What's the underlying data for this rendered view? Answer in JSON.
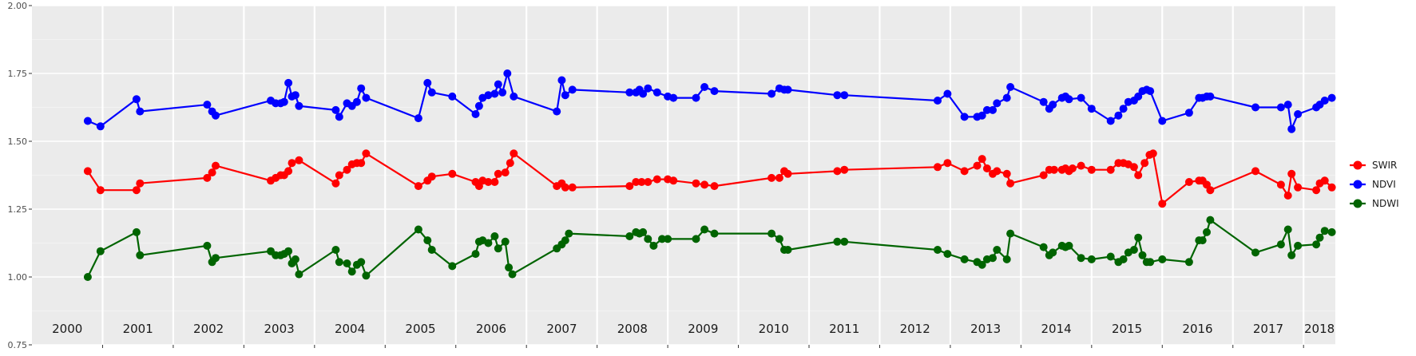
{
  "colors": {
    "panel_background": "#ebebeb",
    "grid_major": "#ffffff",
    "SWIR": "#ff0000",
    "NDVI": "#0000ff",
    "NDWI": "#006400"
  },
  "chart_data": {
    "type": "line",
    "title": "",
    "xlabel": "",
    "ylabel": "",
    "ylim": [
      0.75,
      2.0
    ],
    "xlim": [
      2000.0,
      2018.45
    ],
    "y_ticks": [
      "0.75",
      "1.00",
      "1.25",
      "1.50",
      "1.75",
      "2.00"
    ],
    "year_labels": [
      "2000",
      "2001",
      "2002",
      "2003",
      "2004",
      "2005",
      "2006",
      "2007",
      "2008",
      "2009",
      "2010",
      "2011",
      "2012",
      "2013",
      "2014",
      "2015",
      "2016",
      "2017",
      "2018"
    ],
    "grid": true,
    "legend_position": "right",
    "x_unit": "decimal year",
    "series": [
      {
        "name": "SWIR",
        "color": "#ff0000",
        "points": [
          [
            2000.79,
            1.39
          ],
          [
            2000.97,
            1.32
          ],
          [
            2001.48,
            1.32
          ],
          [
            2001.53,
            1.345
          ],
          [
            2002.48,
            1.365
          ],
          [
            2002.55,
            1.385
          ],
          [
            2002.6,
            1.41
          ],
          [
            2003.38,
            1.355
          ],
          [
            2003.45,
            1.365
          ],
          [
            2003.52,
            1.375
          ],
          [
            2003.57,
            1.375
          ],
          [
            2003.63,
            1.39
          ],
          [
            2003.68,
            1.42
          ],
          [
            2003.78,
            1.43
          ],
          [
            2004.3,
            1.345
          ],
          [
            2004.35,
            1.375
          ],
          [
            2004.46,
            1.395
          ],
          [
            2004.53,
            1.415
          ],
          [
            2004.6,
            1.42
          ],
          [
            2004.66,
            1.42
          ],
          [
            2004.73,
            1.455
          ],
          [
            2005.47,
            1.335
          ],
          [
            2005.6,
            1.355
          ],
          [
            2005.66,
            1.37
          ],
          [
            2005.95,
            1.38
          ],
          [
            2006.28,
            1.35
          ],
          [
            2006.33,
            1.335
          ],
          [
            2006.38,
            1.355
          ],
          [
            2006.46,
            1.35
          ],
          [
            2006.55,
            1.35
          ],
          [
            2006.6,
            1.38
          ],
          [
            2006.7,
            1.385
          ],
          [
            2006.77,
            1.42
          ],
          [
            2006.82,
            1.455
          ],
          [
            2007.43,
            1.335
          ],
          [
            2007.5,
            1.345
          ],
          [
            2007.55,
            1.33
          ],
          [
            2007.65,
            1.33
          ],
          [
            2008.46,
            1.335
          ],
          [
            2008.55,
            1.35
          ],
          [
            2008.63,
            1.35
          ],
          [
            2008.72,
            1.35
          ],
          [
            2008.85,
            1.36
          ],
          [
            2009.0,
            1.36
          ],
          [
            2009.08,
            1.355
          ],
          [
            2009.4,
            1.345
          ],
          [
            2009.52,
            1.34
          ],
          [
            2009.66,
            1.335
          ],
          [
            2010.47,
            1.365
          ],
          [
            2010.58,
            1.365
          ],
          [
            2010.65,
            1.39
          ],
          [
            2010.7,
            1.38
          ],
          [
            2011.4,
            1.39
          ],
          [
            2011.5,
            1.395
          ],
          [
            2012.82,
            1.405
          ],
          [
            2012.96,
            1.42
          ],
          [
            2013.2,
            1.39
          ],
          [
            2013.38,
            1.41
          ],
          [
            2013.45,
            1.435
          ],
          [
            2013.52,
            1.4
          ],
          [
            2013.6,
            1.38
          ],
          [
            2013.66,
            1.39
          ],
          [
            2013.8,
            1.38
          ],
          [
            2013.85,
            1.345
          ],
          [
            2014.32,
            1.375
          ],
          [
            2014.4,
            1.395
          ],
          [
            2014.47,
            1.395
          ],
          [
            2014.58,
            1.395
          ],
          [
            2014.63,
            1.4
          ],
          [
            2014.68,
            1.39
          ],
          [
            2014.73,
            1.4
          ],
          [
            2014.85,
            1.41
          ],
          [
            2015.0,
            1.395
          ],
          [
            2015.27,
            1.395
          ],
          [
            2015.38,
            1.42
          ],
          [
            2015.45,
            1.42
          ],
          [
            2015.52,
            1.415
          ],
          [
            2015.6,
            1.405
          ],
          [
            2015.66,
            1.375
          ],
          [
            2015.75,
            1.42
          ],
          [
            2015.82,
            1.45
          ],
          [
            2015.87,
            1.455
          ],
          [
            2016.0,
            1.27
          ],
          [
            2016.38,
            1.35
          ],
          [
            2016.52,
            1.355
          ],
          [
            2016.57,
            1.355
          ],
          [
            2016.63,
            1.34
          ],
          [
            2016.68,
            1.32
          ],
          [
            2017.32,
            1.39
          ],
          [
            2017.68,
            1.34
          ],
          [
            2017.78,
            1.3
          ],
          [
            2017.83,
            1.38
          ],
          [
            2017.92,
            1.33
          ],
          [
            2018.18,
            1.32
          ],
          [
            2018.23,
            1.345
          ],
          [
            2018.3,
            1.355
          ],
          [
            2018.4,
            1.33
          ]
        ]
      },
      {
        "name": "NDVI",
        "color": "#0000ff",
        "points": [
          [
            2000.79,
            1.575
          ],
          [
            2000.97,
            1.555
          ],
          [
            2001.48,
            1.655
          ],
          [
            2001.53,
            1.61
          ],
          [
            2002.48,
            1.635
          ],
          [
            2002.55,
            1.61
          ],
          [
            2002.6,
            1.595
          ],
          [
            2003.38,
            1.65
          ],
          [
            2003.45,
            1.64
          ],
          [
            2003.52,
            1.64
          ],
          [
            2003.57,
            1.645
          ],
          [
            2003.63,
            1.715
          ],
          [
            2003.68,
            1.665
          ],
          [
            2003.73,
            1.67
          ],
          [
            2003.78,
            1.63
          ],
          [
            2004.3,
            1.615
          ],
          [
            2004.35,
            1.59
          ],
          [
            2004.46,
            1.64
          ],
          [
            2004.53,
            1.63
          ],
          [
            2004.6,
            1.645
          ],
          [
            2004.66,
            1.695
          ],
          [
            2004.73,
            1.66
          ],
          [
            2005.47,
            1.585
          ],
          [
            2005.6,
            1.715
          ],
          [
            2005.66,
            1.68
          ],
          [
            2005.95,
            1.665
          ],
          [
            2006.28,
            1.6
          ],
          [
            2006.33,
            1.63
          ],
          [
            2006.38,
            1.66
          ],
          [
            2006.46,
            1.67
          ],
          [
            2006.55,
            1.675
          ],
          [
            2006.6,
            1.71
          ],
          [
            2006.66,
            1.68
          ],
          [
            2006.73,
            1.75
          ],
          [
            2006.82,
            1.665
          ],
          [
            2007.43,
            1.61
          ],
          [
            2007.5,
            1.725
          ],
          [
            2007.55,
            1.67
          ],
          [
            2007.65,
            1.69
          ],
          [
            2008.46,
            1.68
          ],
          [
            2008.55,
            1.68
          ],
          [
            2008.6,
            1.69
          ],
          [
            2008.65,
            1.675
          ],
          [
            2008.72,
            1.695
          ],
          [
            2008.85,
            1.68
          ],
          [
            2009.0,
            1.665
          ],
          [
            2009.08,
            1.66
          ],
          [
            2009.4,
            1.66
          ],
          [
            2009.52,
            1.7
          ],
          [
            2009.66,
            1.685
          ],
          [
            2010.47,
            1.675
          ],
          [
            2010.58,
            1.695
          ],
          [
            2010.65,
            1.69
          ],
          [
            2010.7,
            1.69
          ],
          [
            2011.4,
            1.67
          ],
          [
            2011.5,
            1.67
          ],
          [
            2012.82,
            1.65
          ],
          [
            2012.96,
            1.675
          ],
          [
            2013.2,
            1.59
          ],
          [
            2013.38,
            1.59
          ],
          [
            2013.45,
            1.595
          ],
          [
            2013.52,
            1.615
          ],
          [
            2013.6,
            1.615
          ],
          [
            2013.66,
            1.64
          ],
          [
            2013.8,
            1.66
          ],
          [
            2013.85,
            1.7
          ],
          [
            2014.32,
            1.645
          ],
          [
            2014.4,
            1.62
          ],
          [
            2014.45,
            1.635
          ],
          [
            2014.58,
            1.66
          ],
          [
            2014.63,
            1.665
          ],
          [
            2014.68,
            1.655
          ],
          [
            2014.85,
            1.66
          ],
          [
            2015.0,
            1.62
          ],
          [
            2015.27,
            1.575
          ],
          [
            2015.38,
            1.595
          ],
          [
            2015.45,
            1.62
          ],
          [
            2015.52,
            1.645
          ],
          [
            2015.6,
            1.65
          ],
          [
            2015.66,
            1.665
          ],
          [
            2015.72,
            1.685
          ],
          [
            2015.78,
            1.69
          ],
          [
            2015.83,
            1.685
          ],
          [
            2016.0,
            1.575
          ],
          [
            2016.38,
            1.605
          ],
          [
            2016.52,
            1.66
          ],
          [
            2016.57,
            1.66
          ],
          [
            2016.63,
            1.665
          ],
          [
            2016.68,
            1.665
          ],
          [
            2017.32,
            1.625
          ],
          [
            2017.68,
            1.625
          ],
          [
            2017.78,
            1.635
          ],
          [
            2017.83,
            1.545
          ],
          [
            2017.92,
            1.6
          ],
          [
            2018.18,
            1.625
          ],
          [
            2018.23,
            1.635
          ],
          [
            2018.3,
            1.65
          ],
          [
            2018.4,
            1.66
          ]
        ]
      },
      {
        "name": "NDWI",
        "color": "#006400",
        "points": [
          [
            2000.79,
            1.0
          ],
          [
            2000.97,
            1.095
          ],
          [
            2001.48,
            1.165
          ],
          [
            2001.53,
            1.08
          ],
          [
            2002.48,
            1.115
          ],
          [
            2002.55,
            1.055
          ],
          [
            2002.6,
            1.07
          ],
          [
            2003.38,
            1.095
          ],
          [
            2003.45,
            1.08
          ],
          [
            2003.52,
            1.08
          ],
          [
            2003.57,
            1.085
          ],
          [
            2003.63,
            1.095
          ],
          [
            2003.68,
            1.05
          ],
          [
            2003.73,
            1.065
          ],
          [
            2003.78,
            1.01
          ],
          [
            2004.3,
            1.1
          ],
          [
            2004.35,
            1.055
          ],
          [
            2004.46,
            1.05
          ],
          [
            2004.53,
            1.02
          ],
          [
            2004.6,
            1.045
          ],
          [
            2004.66,
            1.055
          ],
          [
            2004.73,
            1.005
          ],
          [
            2005.47,
            1.175
          ],
          [
            2005.6,
            1.135
          ],
          [
            2005.66,
            1.1
          ],
          [
            2005.95,
            1.04
          ],
          [
            2006.28,
            1.085
          ],
          [
            2006.33,
            1.13
          ],
          [
            2006.38,
            1.135
          ],
          [
            2006.46,
            1.125
          ],
          [
            2006.55,
            1.15
          ],
          [
            2006.6,
            1.105
          ],
          [
            2006.7,
            1.13
          ],
          [
            2006.75,
            1.035
          ],
          [
            2006.8,
            1.01
          ],
          [
            2007.43,
            1.105
          ],
          [
            2007.5,
            1.12
          ],
          [
            2007.55,
            1.135
          ],
          [
            2007.6,
            1.16
          ],
          [
            2008.46,
            1.15
          ],
          [
            2008.55,
            1.165
          ],
          [
            2008.6,
            1.16
          ],
          [
            2008.65,
            1.165
          ],
          [
            2008.72,
            1.14
          ],
          [
            2008.8,
            1.115
          ],
          [
            2008.92,
            1.14
          ],
          [
            2009.0,
            1.14
          ],
          [
            2009.4,
            1.14
          ],
          [
            2009.52,
            1.175
          ],
          [
            2009.66,
            1.16
          ],
          [
            2010.47,
            1.16
          ],
          [
            2010.58,
            1.14
          ],
          [
            2010.65,
            1.1
          ],
          [
            2010.7,
            1.1
          ],
          [
            2011.4,
            1.13
          ],
          [
            2011.5,
            1.13
          ],
          [
            2012.82,
            1.1
          ],
          [
            2012.96,
            1.085
          ],
          [
            2013.2,
            1.065
          ],
          [
            2013.38,
            1.055
          ],
          [
            2013.45,
            1.045
          ],
          [
            2013.52,
            1.065
          ],
          [
            2013.6,
            1.07
          ],
          [
            2013.66,
            1.1
          ],
          [
            2013.8,
            1.065
          ],
          [
            2013.85,
            1.16
          ],
          [
            2014.32,
            1.11
          ],
          [
            2014.4,
            1.08
          ],
          [
            2014.45,
            1.09
          ],
          [
            2014.58,
            1.115
          ],
          [
            2014.63,
            1.11
          ],
          [
            2014.68,
            1.115
          ],
          [
            2014.85,
            1.07
          ],
          [
            2015.0,
            1.065
          ],
          [
            2015.27,
            1.075
          ],
          [
            2015.38,
            1.055
          ],
          [
            2015.45,
            1.065
          ],
          [
            2015.52,
            1.09
          ],
          [
            2015.6,
            1.1
          ],
          [
            2015.66,
            1.145
          ],
          [
            2015.72,
            1.08
          ],
          [
            2015.78,
            1.055
          ],
          [
            2015.83,
            1.055
          ],
          [
            2016.0,
            1.065
          ],
          [
            2016.38,
            1.055
          ],
          [
            2016.52,
            1.135
          ],
          [
            2016.57,
            1.135
          ],
          [
            2016.63,
            1.165
          ],
          [
            2016.68,
            1.21
          ],
          [
            2017.32,
            1.09
          ],
          [
            2017.68,
            1.12
          ],
          [
            2017.78,
            1.175
          ],
          [
            2017.83,
            1.08
          ],
          [
            2017.92,
            1.115
          ],
          [
            2018.18,
            1.12
          ],
          [
            2018.23,
            1.145
          ],
          [
            2018.3,
            1.17
          ],
          [
            2018.4,
            1.165
          ]
        ]
      }
    ]
  }
}
